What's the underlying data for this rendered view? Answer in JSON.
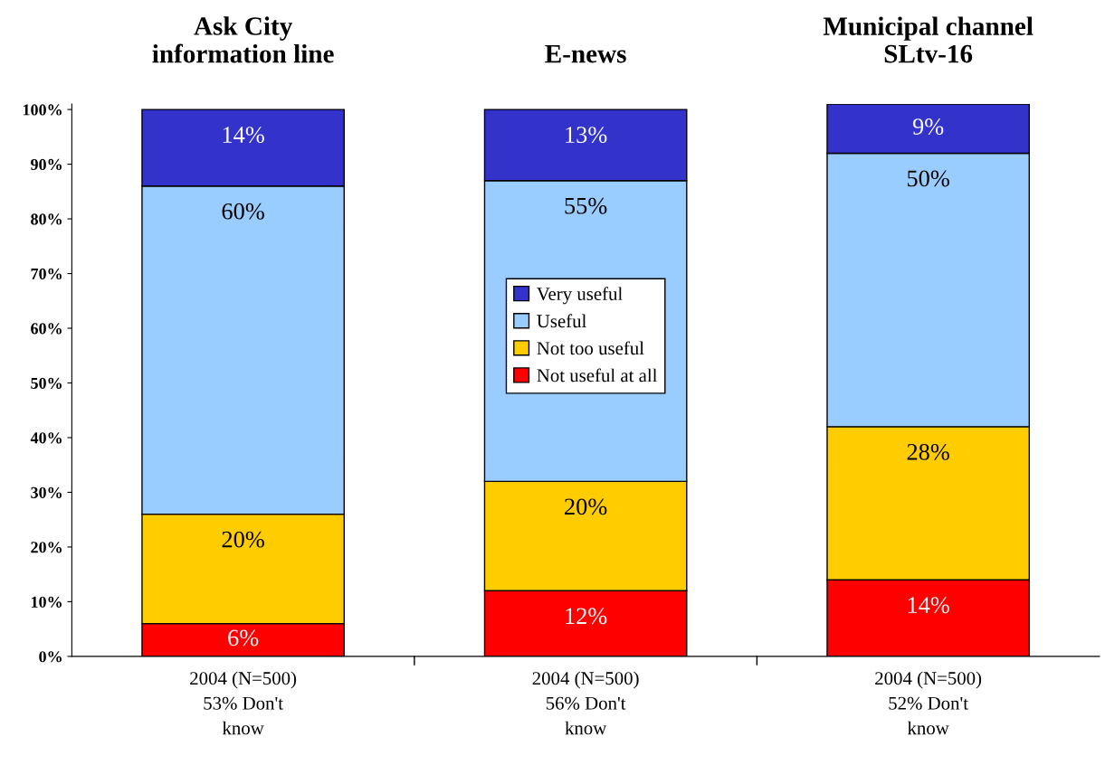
{
  "chart_data": {
    "type": "bar",
    "stacked": true,
    "categories": [
      "2004 (N=500)\n53% Don't\nknow",
      "2004 (N=500)\n56% Don't\nknow",
      "2004 (N=500)\n52% Don't\nknow"
    ],
    "annotations": [
      "Ask City\ninformation line",
      "E-news",
      "Municipal channel\nSLtv-16"
    ],
    "series": [
      {
        "name": "Not useful at all",
        "color": "#ff0000",
        "values": [
          6,
          12,
          14
        ],
        "value_labels": [
          "6%",
          "12%",
          "14%"
        ]
      },
      {
        "name": "Not too useful",
        "color": "#ffcc00",
        "values": [
          20,
          20,
          28
        ],
        "value_labels": [
          "20%",
          "20%",
          "28%"
        ]
      },
      {
        "name": "Useful",
        "color": "#99ccff",
        "values": [
          60,
          55,
          50
        ],
        "value_labels": [
          "60%",
          "55%",
          "50%"
        ]
      },
      {
        "name": "Very useful",
        "color": "#3333cc",
        "values": [
          14,
          13,
          9
        ],
        "value_labels": [
          "14%",
          "13%",
          "9%"
        ]
      }
    ],
    "ylim": [
      0,
      101
    ],
    "yticks": [
      {
        "value": 0,
        "label": "0%"
      },
      {
        "value": 10,
        "label": "10%"
      },
      {
        "value": 20,
        "label": "20%"
      },
      {
        "value": 30,
        "label": "30%"
      },
      {
        "value": 40,
        "label": "40%"
      },
      {
        "value": 50,
        "label": "50%"
      },
      {
        "value": 60,
        "label": "60%"
      },
      {
        "value": 70,
        "label": "70%"
      },
      {
        "value": 80,
        "label": "80%"
      },
      {
        "value": 90,
        "label": "90%"
      },
      {
        "value": 100,
        "label": "100%"
      }
    ],
    "legend": "center",
    "grid": false
  }
}
